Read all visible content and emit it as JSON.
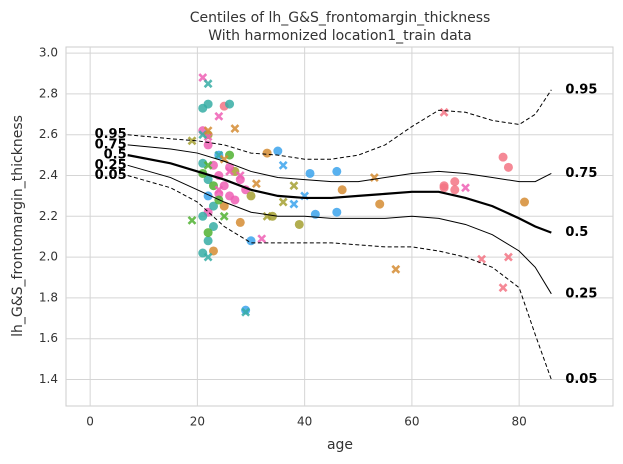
{
  "chart_data": {
    "type": "scatter",
    "title": [
      "Centiles of lh_G&S_frontomargin_thickness",
      "With harmonized location1_train data"
    ],
    "xlabel": "age",
    "ylabel": "lh_G&S_frontomargin_thickness",
    "xlim": [
      -4.5,
      97.5
    ],
    "ylim": [
      1.27,
      3.03
    ],
    "xticks": [
      0,
      20,
      40,
      60,
      80
    ],
    "yticks": [
      1.4,
      1.6,
      1.8,
      {
        "value": 2,
        "label": "2.0"
      },
      2.2,
      2.4,
      2.6,
      2.8,
      {
        "value": 3,
        "label": "3.0"
      }
    ],
    "grid": true,
    "series": [
      {
        "color": "#ee5fb4",
        "marker": "circle",
        "x": [
          21,
          22,
          23,
          24,
          25,
          26,
          27,
          28,
          22,
          24,
          26,
          29
        ],
        "values": [
          2.62,
          2.55,
          2.45,
          2.4,
          2.35,
          2.3,
          2.28,
          2.38,
          2.22,
          2.31,
          2.44,
          2.33
        ]
      },
      {
        "color": "#f37484",
        "marker": "circle",
        "x": [
          66,
          77,
          78,
          68,
          25,
          66,
          68
        ],
        "values": [
          2.34,
          2.49,
          2.44,
          2.37,
          2.74,
          2.35,
          2.33
        ]
      },
      {
        "color": "#36ada4",
        "marker": "circle",
        "x": [
          21,
          22,
          21,
          22,
          21,
          23,
          21,
          22,
          26,
          23
        ],
        "values": [
          2.73,
          2.75,
          2.46,
          2.38,
          2.2,
          2.15,
          2.02,
          2.08,
          2.75,
          2.25
        ]
      },
      {
        "color": "#3ba3ec",
        "marker": "circle",
        "x": [
          29,
          30,
          35,
          41,
          46,
          42,
          46,
          24,
          22
        ],
        "values": [
          1.74,
          2.08,
          2.52,
          2.41,
          2.42,
          2.21,
          2.22,
          2.5,
          2.3
        ]
      },
      {
        "color": "#d58c32",
        "marker": "circle",
        "x": [
          47,
          54,
          23,
          28,
          33,
          25,
          81
        ],
        "values": [
          2.33,
          2.26,
          2.03,
          2.17,
          2.51,
          2.25,
          2.27
        ]
      },
      {
        "color": "#a4a031",
        "marker": "circle",
        "x": [
          34,
          39,
          27,
          22,
          30
        ],
        "values": [
          2.2,
          2.16,
          2.42,
          2.6,
          2.3
        ]
      },
      {
        "color": "#50b131",
        "marker": "circle",
        "x": [
          21,
          23,
          24,
          22,
          26
        ],
        "values": [
          2.41,
          2.35,
          2.28,
          2.12,
          2.5
        ]
      },
      {
        "color": "#ee5fb4",
        "marker": "x",
        "x": [
          21,
          22,
          24,
          28,
          32,
          70,
          24,
          26
        ],
        "values": [
          2.88,
          2.59,
          2.33,
          2.4,
          2.09,
          2.34,
          2.69,
          2.42
        ]
      },
      {
        "color": "#f37484",
        "marker": "x",
        "x": [
          66,
          73,
          77,
          78
        ],
        "values": [
          2.71,
          1.99,
          1.85,
          2.0
        ]
      },
      {
        "color": "#36ada4",
        "marker": "x",
        "x": [
          22,
          21,
          22,
          29,
          24
        ],
        "values": [
          2.85,
          2.6,
          2.0,
          1.73,
          2.5
        ]
      },
      {
        "color": "#3ba3ec",
        "marker": "x",
        "x": [
          40,
          36,
          38
        ],
        "values": [
          2.3,
          2.45,
          2.26
        ]
      },
      {
        "color": "#d58c32",
        "marker": "x",
        "x": [
          22,
          31,
          53,
          57,
          27,
          25
        ],
        "values": [
          2.62,
          2.36,
          2.39,
          1.94,
          2.63,
          2.48
        ]
      },
      {
        "color": "#a4a031",
        "marker": "x",
        "x": [
          19,
          36,
          38,
          33
        ],
        "values": [
          2.57,
          2.27,
          2.35,
          2.2
        ]
      },
      {
        "color": "#50b131",
        "marker": "x",
        "x": [
          22,
          19,
          25
        ],
        "values": [
          2.45,
          2.18,
          2.2
        ]
      }
    ],
    "centile_x": [
      7,
      15,
      20,
      25,
      30,
      35,
      40,
      45,
      50,
      55,
      60,
      65,
      70,
      75,
      80,
      83,
      86
    ],
    "centiles": [
      {
        "name": "0.95",
        "linestyle": "dashed",
        "values": [
          2.6,
          2.58,
          2.57,
          2.55,
          2.51,
          2.5,
          2.48,
          2.48,
          2.5,
          2.55,
          2.64,
          2.72,
          2.71,
          2.67,
          2.65,
          2.7,
          2.82
        ]
      },
      {
        "name": "0.75",
        "linestyle": "solid",
        "values": [
          2.55,
          2.53,
          2.51,
          2.47,
          2.42,
          2.39,
          2.38,
          2.37,
          2.37,
          2.39,
          2.41,
          2.42,
          2.41,
          2.39,
          2.37,
          2.37,
          2.41
        ]
      },
      {
        "name": "0.5",
        "linestyle": "bold",
        "values": [
          2.5,
          2.46,
          2.42,
          2.38,
          2.33,
          2.3,
          2.29,
          2.29,
          2.3,
          2.31,
          2.32,
          2.32,
          2.29,
          2.25,
          2.19,
          2.15,
          2.12
        ]
      },
      {
        "name": "0.25",
        "linestyle": "solid",
        "values": [
          2.45,
          2.39,
          2.33,
          2.27,
          2.22,
          2.2,
          2.2,
          2.19,
          2.19,
          2.19,
          2.2,
          2.19,
          2.16,
          2.11,
          2.03,
          1.95,
          1.82
        ]
      },
      {
        "name": "0.05",
        "linestyle": "dashed",
        "values": [
          2.4,
          2.34,
          2.27,
          2.15,
          2.07,
          2.07,
          2.07,
          2.07,
          2.06,
          2.05,
          2.05,
          2.03,
          2.0,
          1.95,
          1.85,
          1.62,
          1.4
        ]
      }
    ]
  }
}
